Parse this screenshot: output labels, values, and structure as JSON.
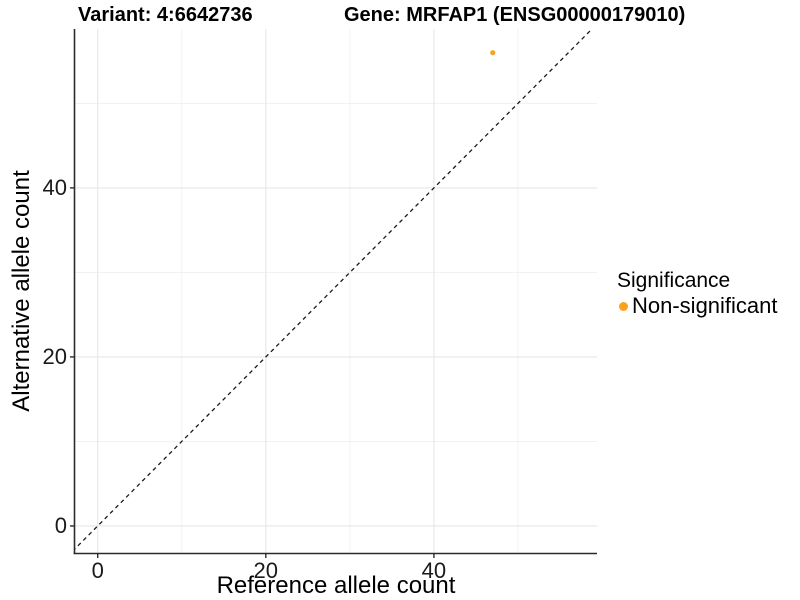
{
  "titles": {
    "variant": "Variant: 4:6642736",
    "gene": "Gene: MRFAP1 (ENSG00000179010)"
  },
  "chart_data": {
    "type": "scatter",
    "xlabel": "Reference allele count",
    "ylabel": "Alternative allele count",
    "xlim": [
      -2.7,
      59.4
    ],
    "ylim": [
      -3.2,
      58.8
    ],
    "x_ticks": {
      "major": [
        0,
        20,
        40
      ],
      "minor": [
        10,
        30,
        50
      ]
    },
    "y_ticks": {
      "major": [
        0,
        20,
        40
      ],
      "minor": [
        10,
        30,
        50
      ]
    },
    "grid": true,
    "reference_line": {
      "type": "identity",
      "slope": 1,
      "intercept": 0,
      "style": "dashed",
      "color": "#1a1a1a"
    },
    "series": [
      {
        "name": "Non-significant",
        "color": "#FAA21E",
        "points": [
          {
            "x": 47,
            "y": 56
          }
        ]
      }
    ],
    "legend": {
      "title": "Significance",
      "position": "right",
      "entries": [
        {
          "label": "Non-significant",
          "color": "#FAA21E"
        }
      ]
    },
    "colors": {
      "axis_line": "#2b2b2b",
      "grid_major": "#e6e6e6",
      "grid_minor": "#f1f1f1"
    }
  }
}
